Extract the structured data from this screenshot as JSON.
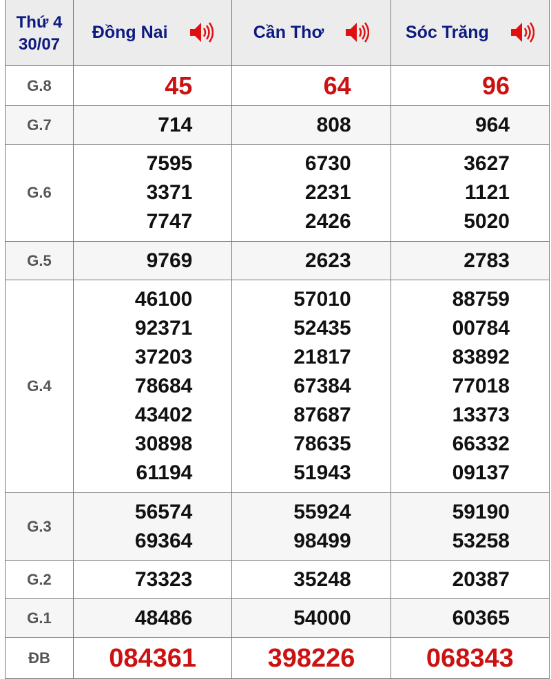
{
  "header": {
    "day": "Thứ 4",
    "date": "30/07",
    "provinces": [
      "Đồng Nai",
      "Cần Thơ",
      "Sóc Trăng"
    ],
    "speaker_icon": "speaker-icon"
  },
  "colors": {
    "header_text": "#0d1a80",
    "highlight": "#cc1111"
  },
  "rows": [
    {
      "label": "G.8",
      "values": [
        [
          "45"
        ],
        [
          "64"
        ],
        [
          "96"
        ]
      ]
    },
    {
      "label": "G.7",
      "values": [
        [
          "714"
        ],
        [
          "808"
        ],
        [
          "964"
        ]
      ]
    },
    {
      "label": "G.6",
      "values": [
        [
          "7595",
          "3371",
          "7747"
        ],
        [
          "6730",
          "2231",
          "2426"
        ],
        [
          "3627",
          "1121",
          "5020"
        ]
      ]
    },
    {
      "label": "G.5",
      "values": [
        [
          "9769"
        ],
        [
          "2623"
        ],
        [
          "2783"
        ]
      ]
    },
    {
      "label": "G.4",
      "values": [
        [
          "46100",
          "92371",
          "37203",
          "78684",
          "43402",
          "30898",
          "61194"
        ],
        [
          "57010",
          "52435",
          "21817",
          "67384",
          "87687",
          "78635",
          "51943"
        ],
        [
          "88759",
          "00784",
          "83892",
          "77018",
          "13373",
          "66332",
          "09137"
        ]
      ]
    },
    {
      "label": "G.3",
      "values": [
        [
          "56574",
          "69364"
        ],
        [
          "55924",
          "98499"
        ],
        [
          "59190",
          "53258"
        ]
      ]
    },
    {
      "label": "G.2",
      "values": [
        [
          "73323"
        ],
        [
          "35248"
        ],
        [
          "20387"
        ]
      ]
    },
    {
      "label": "G.1",
      "values": [
        [
          "48486"
        ],
        [
          "54000"
        ],
        [
          "60365"
        ]
      ]
    },
    {
      "label": "ĐB",
      "values": [
        [
          "084361"
        ],
        [
          "398226"
        ],
        [
          "068343"
        ]
      ]
    }
  ]
}
